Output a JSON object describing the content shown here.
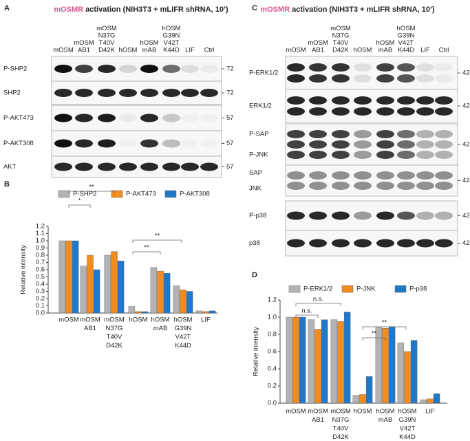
{
  "panel_labels": [
    "A",
    "B",
    "C",
    "D"
  ],
  "blots": [
    {
      "title_parts": [
        "mOSMR",
        " activation (NIH3T3 + mLIFR shRNA, 10’)"
      ],
      "lanes": [
        [
          "mOSM"
        ],
        [
          "mOSM",
          "AB1"
        ],
        [
          "mOSM",
          "N37G",
          "T40V",
          "D42K"
        ],
        [
          "hOSM"
        ],
        [
          "hOSM",
          "mAB"
        ],
        [
          "hOSM",
          "G39N",
          "V42T",
          "K44D"
        ],
        [
          "LIF"
        ],
        [
          "Ctrl"
        ]
      ],
      "rows": [
        {
          "labels": [
            "P-SHP2"
          ],
          "mw": 72
        },
        {
          "labels": [
            "SHP2"
          ],
          "mw": 72
        },
        {
          "labels": [
            "P-AKT473"
          ],
          "mw": 57
        },
        {
          "labels": [
            "P-AKT308"
          ],
          "mw": 57
        },
        {
          "labels": [
            "AKT"
          ],
          "mw": 57
        }
      ]
    },
    {
      "title_parts": [
        "mOSMR",
        " activation (NIH3T3 + mLIFR shRNA, 10’)"
      ],
      "lanes": [
        [
          "mOSM"
        ],
        [
          "mOSM",
          "AB1"
        ],
        [
          "mOSM",
          "N37G",
          "T40V",
          "D42K"
        ],
        [
          "hOSM"
        ],
        [
          "hOSM",
          "mAB"
        ],
        [
          "hOSM",
          "G39N",
          "V42T",
          "K44D"
        ],
        [
          "LIF"
        ],
        [
          "Ctrl"
        ]
      ],
      "rows": [
        {
          "labels": [
            "P-ERK1/2"
          ],
          "mw": 42
        },
        {
          "labels": [
            "ERK1/2"
          ],
          "mw": 42
        },
        {
          "labels": [
            "P-SAP",
            "P-JNK"
          ],
          "mw": 42
        },
        {
          "labels": [
            "SAP",
            "JNK"
          ],
          "mw": 42
        },
        {
          "labels": [
            "P-p38"
          ],
          "mw": 42
        },
        {
          "labels": [
            "p38"
          ],
          "mw": 42
        }
      ]
    }
  ],
  "chart_data": [
    {
      "type": "bar",
      "ylabel": "Relative intensity",
      "categories": [
        [
          "mOSM"
        ],
        [
          "mOSM",
          "AB1"
        ],
        [
          "mOSM",
          "N37G",
          "T40V",
          "D42K"
        ],
        [
          "hOSM"
        ],
        [
          "hOSM",
          "mAB"
        ],
        [
          "hOSM",
          "G39N",
          "V42T",
          "K44D"
        ],
        [
          "LIF"
        ]
      ],
      "series": [
        {
          "name": "P-SHP2",
          "color": "#b3b3b3",
          "values": [
            1.0,
            0.65,
            0.8,
            0.09,
            0.63,
            0.38,
            0.03
          ]
        },
        {
          "name": "P-AKT473",
          "color": "#f28c1e",
          "values": [
            1.0,
            0.8,
            0.85,
            0.02,
            0.58,
            0.32,
            0.02
          ]
        },
        {
          "name": "P-AKT308",
          "color": "#1f78c8",
          "values": [
            1.0,
            0.6,
            0.72,
            0.02,
            0.55,
            0.3,
            0.03
          ]
        }
      ],
      "ylim": [
        0,
        1.2
      ],
      "yticks": [
        {
          "value": 0,
          "label": "0.0"
        },
        {
          "value": 0.1,
          "label": "0.1"
        },
        {
          "value": 0.2,
          "label": "0.2"
        },
        {
          "value": 0.3,
          "label": "0.3"
        },
        {
          "value": 0.4,
          "label": "0.4"
        },
        {
          "value": 0.5,
          "label": "0.5"
        },
        {
          "value": 0.6,
          "label": "0.6"
        },
        {
          "value": 0.7,
          "label": "0.7"
        },
        {
          "value": 0.8,
          "label": "0.8"
        },
        {
          "value": 0.9,
          "label": "0.9"
        },
        {
          "value": 1,
          "label": "1.0"
        },
        {
          "value": 1.1,
          "label": "1.1"
        },
        {
          "value": 1.2,
          "label": "1.2"
        }
      ],
      "annotations": [
        "**",
        "*",
        "**",
        "**"
      ]
    },
    {
      "type": "bar",
      "ylabel": "Relative intensity",
      "categories": [
        [
          "mOSM"
        ],
        [
          "mOSM",
          "AB1"
        ],
        [
          "mOSM",
          "N37G",
          "T40V",
          "D42K"
        ],
        [
          "hOSM"
        ],
        [
          "hOSM",
          "mAB"
        ],
        [
          "hOSM",
          "G39N",
          "V42T",
          "K44D"
        ],
        [
          "LIF"
        ]
      ],
      "series": [
        {
          "name": "P-ERK1/2",
          "color": "#b3b3b3",
          "values": [
            1.0,
            0.97,
            0.97,
            0.09,
            0.88,
            0.7,
            0.04
          ]
        },
        {
          "name": "P-JNK",
          "color": "#f28c1e",
          "values": [
            1.0,
            0.86,
            0.95,
            0.1,
            0.87,
            0.6,
            0.05
          ]
        },
        {
          "name": "P-p38",
          "color": "#1f78c8",
          "values": [
            1.0,
            0.97,
            1.06,
            0.31,
            0.89,
            0.73,
            0.11
          ]
        }
      ],
      "ylim": [
        0,
        1.2
      ],
      "yticks": [
        {
          "value": 0,
          "label": "0.0"
        },
        {
          "value": 0.2,
          "label": "0.2"
        },
        {
          "value": 0.4,
          "label": "0.4"
        },
        {
          "value": 0.6,
          "label": "0.6"
        },
        {
          "value": 0.8,
          "label": "0.8"
        },
        {
          "value": 1,
          "label": "1.0"
        },
        {
          "value": 1.2,
          "label": "1.2"
        }
      ],
      "annotations": [
        "n.s.",
        "n.s.",
        "**",
        "**"
      ]
    }
  ]
}
